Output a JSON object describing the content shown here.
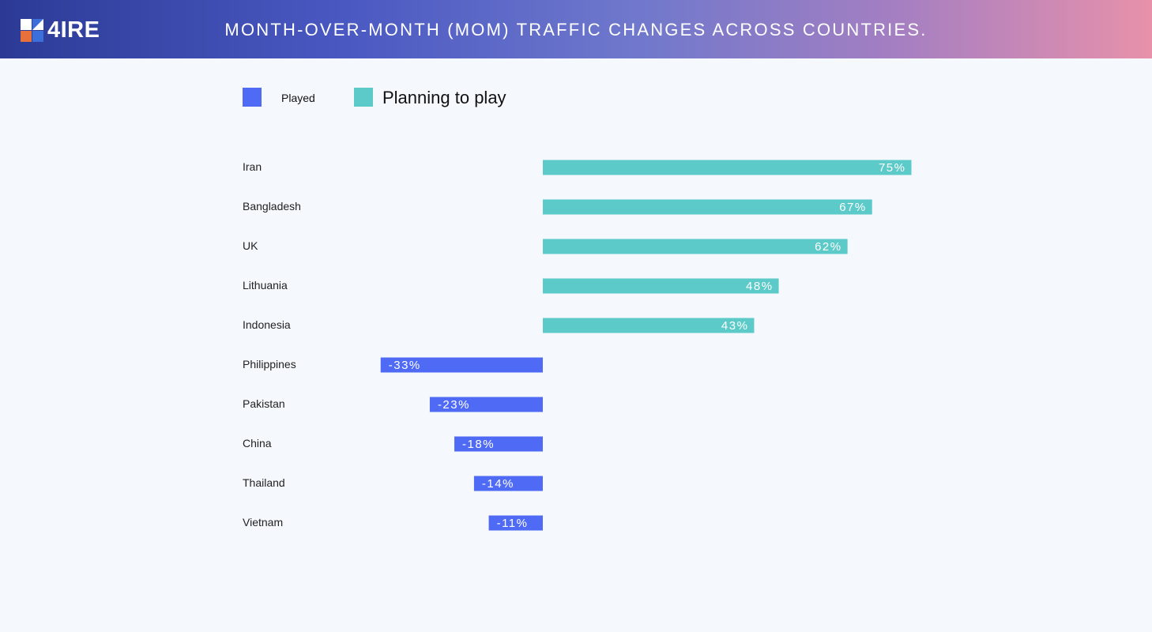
{
  "header": {
    "logo_text": "4IRE",
    "title": "MONTH-OVER-MONTH (MOM) TRAFFIC CHANGES ACROSS COUNTRIES."
  },
  "colors": {
    "played": "#4f6bf6",
    "planning": "#5ccac8",
    "logo_blue": "#3b6fd9",
    "logo_orange": "#e8703a",
    "logo_white": "#ffffff"
  },
  "chart_data": {
    "type": "bar",
    "orientation": "horizontal",
    "categories": [
      "Iran",
      "Bangladesh",
      "UK",
      "Lithuania",
      "Indonesia",
      "Philippines",
      "Pakistan",
      "China",
      "Thailand",
      "Vietnam"
    ],
    "values": [
      75,
      67,
      62,
      48,
      43,
      -33,
      -23,
      -18,
      -14,
      -11
    ],
    "value_labels": [
      "75%",
      "67%",
      "62%",
      "48%",
      "43%",
      "-33%",
      "-23%",
      "-18%",
      "-14%",
      "-11%"
    ],
    "series": [
      {
        "name": "Played",
        "color": "#4f6bf6",
        "applies_to": "negative"
      },
      {
        "name": "Planning to play",
        "color": "#5ccac8",
        "applies_to": "positive"
      }
    ],
    "legend": [
      "Played",
      "Planning to play"
    ],
    "legend_position": "top-left",
    "grid": false,
    "title": "",
    "xlabel": "",
    "ylabel": ""
  }
}
